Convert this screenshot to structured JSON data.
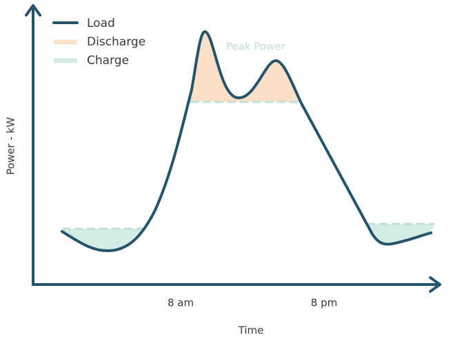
{
  "legend": {
    "items": [
      "Load",
      "Discharge",
      "Charge"
    ]
  },
  "annotation": "Peak Power",
  "x_axis": {
    "label": "Time",
    "ticks": [
      "8 am",
      "8 pm"
    ]
  },
  "y_axis": {
    "label": "Power - kW"
  }
}
